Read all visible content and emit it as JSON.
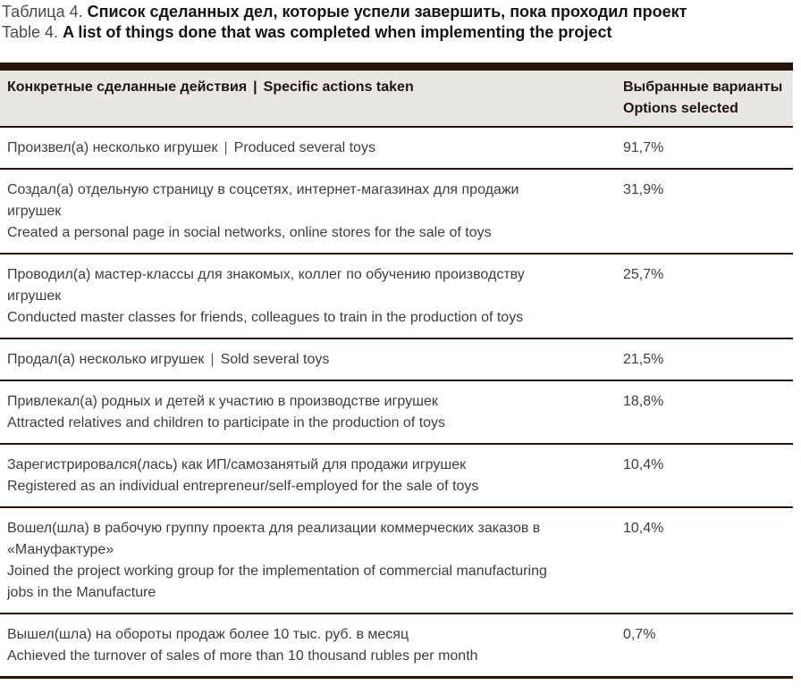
{
  "caption": {
    "label_ru": "Таблица 4.",
    "text_ru": "Список сделанных дел, которые успели завершить, пока проходил проект",
    "label_en": "Table 4.",
    "text_en": "A list of things done that was completed when implementing the project"
  },
  "table": {
    "pipe": "|",
    "header": {
      "col1_ru": "Конкретные сделанные действия",
      "col1_en": "Specific actions taken",
      "col2_line1": "Выбранные варианты",
      "col2_line2": "Options selected"
    },
    "rows": [
      {
        "ru": "Произвел(а) несколько игрушек",
        "en": "Produced several toys",
        "value": "91,7%"
      },
      {
        "lines": [
          "Создал(а) отдельную страницу в соцсетях, интернет-магазинах для продажи",
          "игрушек",
          "Created a personal page in social networks, online stores for the sale of toys"
        ],
        "value": "31,9%"
      },
      {
        "lines": [
          "Проводил(а) мастер-классы для знакомых, коллег по обучению производству",
          "игрушек",
          "Conducted master classes for friends, colleagues to train in the production of toys"
        ],
        "value": "25,7%"
      },
      {
        "ru": "Продал(а) несколько игрушек",
        "en": "Sold several toys",
        "value": "21,5%"
      },
      {
        "lines": [
          "Привлекал(а) родных и детей к участию в производстве игрушек",
          "Attracted relatives and children to participate in the production of toys"
        ],
        "value": "18,8%"
      },
      {
        "lines": [
          "Зарегистрировался(лась) как ИП/самозанятый для продажи игрушек",
          "Registered as an individual entrepreneur/self-employed for the sale of toys"
        ],
        "value": "10,4%"
      },
      {
        "lines": [
          "Вошел(шла) в рабочую группу проекта для реализации коммерческих заказов в",
          "«Мануфактуре»",
          "Joined the project working group for the implementation of commercial manufacturing",
          "jobs in the Manufacture"
        ],
        "value": "10,4%"
      },
      {
        "lines": [
          "Вышел(шла) на обороты продаж более 10 тыс. руб. в месяц",
          "Achieved the turnover of sales of more than 10 thousand rubles per month"
        ],
        "value": "0,7%"
      }
    ]
  }
}
